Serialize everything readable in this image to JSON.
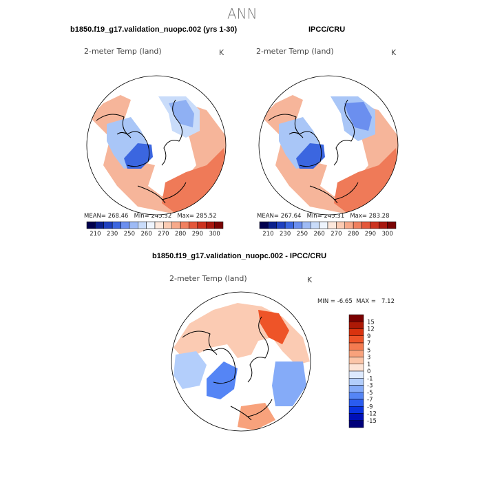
{
  "page": {
    "season": "ANN",
    "panel_left_title": "b1850.f19_g17.validation_nuopc.002 (yrs 1-30)",
    "panel_right_title": "IPCC/CRU",
    "diff_title": "b1850.f19_g17.validation_nuopc.002 - IPCC/CRU"
  },
  "maps": [
    {
      "name": "model",
      "variable": "2-meter Temp (land)",
      "units": "K",
      "mean_label": "MEAN=",
      "mean": "268.46",
      "min_label": "Min=",
      "min": "245.32",
      "max_label": "Max=",
      "max": "285.52"
    },
    {
      "name": "obs",
      "variable": "2-meter Temp (land)",
      "units": "K",
      "mean_label": "MEAN=",
      "mean": "267.64",
      "min_label": "Min=",
      "min": "245.31",
      "max_label": "Max=",
      "max": "283.28"
    },
    {
      "name": "difference",
      "variable": "2-meter Temp (land)",
      "units": "K",
      "min_label": "MIN =",
      "min": "-6.65",
      "max_label": "MAX =",
      "max": "7.12"
    }
  ],
  "abs_colorbar": {
    "colors": [
      "#00004d",
      "#0a1f8c",
      "#1f40bf",
      "#3b66e0",
      "#6b8fef",
      "#9dbaf5",
      "#c9dcfa",
      "#eef4fd",
      "#fde8dc",
      "#fbcbb3",
      "#f7a98a",
      "#f0805f",
      "#e4573a",
      "#cc3320",
      "#a8180f",
      "#7a0404"
    ],
    "ticks": [
      "210",
      "230",
      "250",
      "260",
      "270",
      "280",
      "290",
      "300"
    ]
  },
  "diff_colorbar": {
    "colors": [
      "#00007a",
      "#0010b8",
      "#0a33e0",
      "#2a5cf0",
      "#5585f5",
      "#85abf8",
      "#b3cefb",
      "#dde9fd",
      "#fde4d6",
      "#fbc5a8",
      "#f8a27c",
      "#f47b50",
      "#ee5428",
      "#d9330e",
      "#ad1906",
      "#7a0000"
    ],
    "ticks": [
      "15",
      "12",
      "9",
      "7",
      "5",
      "3",
      "1",
      "0",
      "-1",
      "-3",
      "-5",
      "-7",
      "-9",
      "-12",
      "-15"
    ]
  }
}
